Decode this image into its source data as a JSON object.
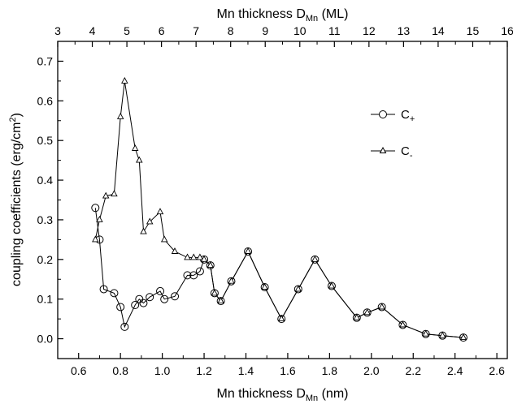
{
  "chart_data": {
    "type": "line",
    "xlabel": {
      "main": "Mn thickness D",
      "sub": "Mn",
      "unit": " (nm)"
    },
    "x2label": {
      "main": "Mn thickness D",
      "sub": "Mn",
      "unit": " (ML)"
    },
    "ylabel": {
      "main": "coupling  coefficients  (erg/cm",
      "sup": "2",
      "end": ")"
    },
    "xlim": [
      0.5,
      2.65
    ],
    "ylim": [
      -0.05,
      0.75
    ],
    "x2lim": [
      3,
      16
    ],
    "xticks": [
      "0.6",
      "0.8",
      "1.0",
      "1.2",
      "1.4",
      "1.6",
      "1.8",
      "2.0",
      "2.2",
      "2.4",
      "2.6"
    ],
    "yticks": [
      "0.0",
      "0.1",
      "0.2",
      "0.3",
      "0.4",
      "0.5",
      "0.6",
      "0.7"
    ],
    "x2ticks": [
      "3",
      "4",
      "5",
      "6",
      "7",
      "8",
      "9",
      "10",
      "11",
      "12",
      "13",
      "14",
      "15",
      "16"
    ],
    "legend_position": "top-right",
    "series": [
      {
        "name": "C",
        "sub": "+",
        "marker": "circle",
        "x": [
          0.68,
          0.7,
          0.72,
          0.77,
          0.8,
          0.82,
          0.87,
          0.89,
          0.91,
          0.94,
          0.99,
          1.01,
          1.06,
          1.12,
          1.15,
          1.18,
          1.2,
          1.23,
          1.25,
          1.28,
          1.33,
          1.41,
          1.49,
          1.57,
          1.65,
          1.73,
          1.81,
          1.93,
          1.98,
          2.05,
          2.15,
          2.26,
          2.34,
          2.44
        ],
        "y": [
          0.33,
          0.25,
          0.125,
          0.115,
          0.08,
          0.03,
          0.085,
          0.1,
          0.09,
          0.105,
          0.12,
          0.1,
          0.107,
          0.16,
          0.16,
          0.17,
          0.2,
          0.185,
          0.115,
          0.095,
          0.145,
          0.22,
          0.13,
          0.05,
          0.125,
          0.2,
          0.133,
          0.053,
          0.066,
          0.08,
          0.035,
          0.012,
          0.008,
          0.003
        ]
      },
      {
        "name": "C",
        "sub": "-",
        "marker": "triangle",
        "x": [
          0.68,
          0.7,
          0.73,
          0.77,
          0.8,
          0.82,
          0.87,
          0.89,
          0.91,
          0.94,
          0.99,
          1.01,
          1.06,
          1.12,
          1.15,
          1.18,
          1.2,
          1.23,
          1.25,
          1.28,
          1.33,
          1.41,
          1.49,
          1.57,
          1.65,
          1.73,
          1.81,
          1.93,
          1.98,
          2.05,
          2.15,
          2.26,
          2.34,
          2.44
        ],
        "y": [
          0.25,
          0.3,
          0.36,
          0.365,
          0.56,
          0.65,
          0.48,
          0.45,
          0.27,
          0.295,
          0.32,
          0.25,
          0.22,
          0.205,
          0.205,
          0.205,
          0.2,
          0.185,
          0.115,
          0.095,
          0.145,
          0.22,
          0.13,
          0.05,
          0.125,
          0.2,
          0.133,
          0.053,
          0.066,
          0.08,
          0.035,
          0.012,
          0.008,
          0.003
        ]
      }
    ]
  }
}
